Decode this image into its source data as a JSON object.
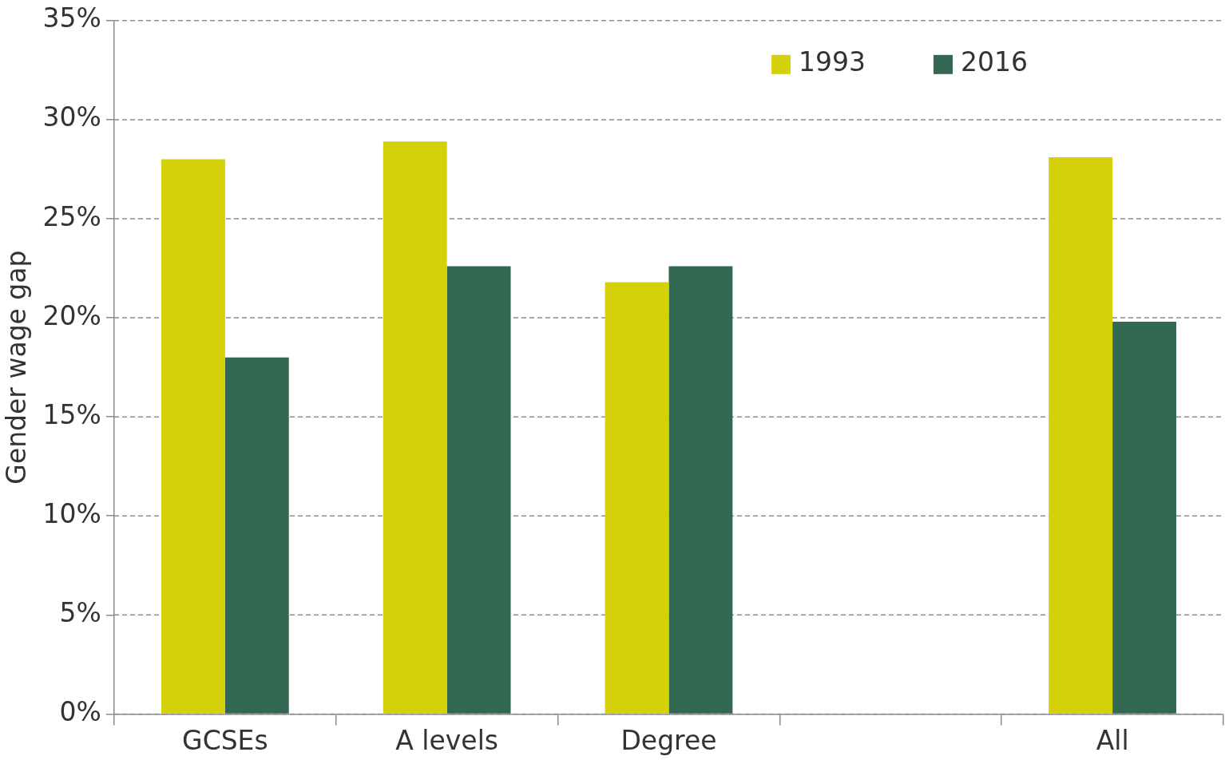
{
  "chart_data": {
    "type": "bar",
    "ylabel": "Gender wage gap",
    "categories": [
      "GCSEs",
      "A levels",
      "Degree",
      null,
      "All"
    ],
    "series": [
      {
        "name": "1993",
        "color": "#d4d10b",
        "values": [
          28.0,
          28.9,
          21.8,
          null,
          28.1
        ]
      },
      {
        "name": "2016",
        "color": "#336852",
        "values": [
          18.0,
          22.6,
          22.6,
          null,
          19.8
        ]
      }
    ],
    "ylim": [
      0,
      35
    ],
    "yticks": [
      {
        "value": 0,
        "label": "0%"
      },
      {
        "value": 5,
        "label": "5%"
      },
      {
        "value": 10,
        "label": "10%"
      },
      {
        "value": 15,
        "label": "15%"
      },
      {
        "value": 20,
        "label": "20%"
      },
      {
        "value": 25,
        "label": "25%"
      },
      {
        "value": 30,
        "label": "30%"
      },
      {
        "value": 35,
        "label": "35%"
      }
    ],
    "grid": "y",
    "legend": "top right"
  }
}
